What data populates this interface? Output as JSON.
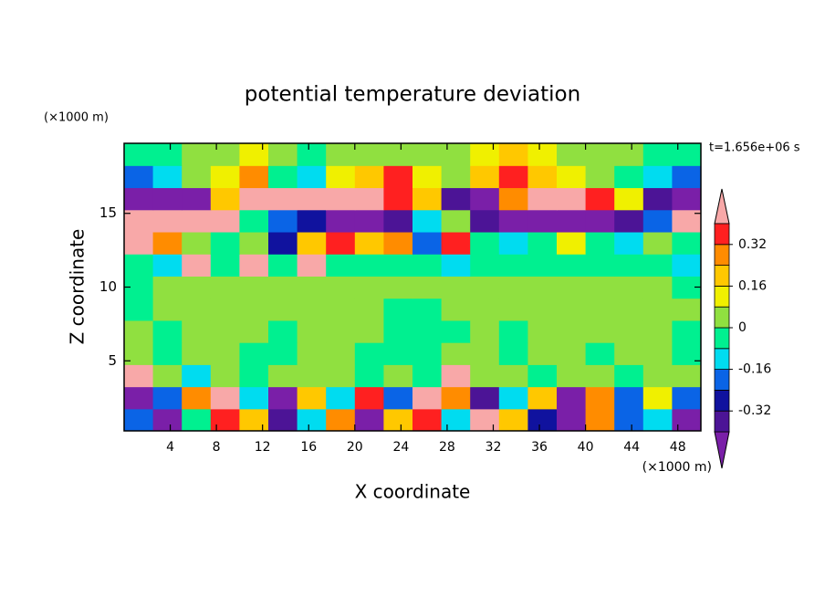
{
  "chart_data": {
    "type": "contour",
    "title": "potential temperature deviation",
    "x_label": "X coordinate",
    "y_label": "Z coordinate",
    "x_unit": "(×1000 m)",
    "y_unit": "(×1000 m)",
    "annotation": "t=1.656e+06 s",
    "xlim": [
      0,
      50
    ],
    "ylim": [
      0.25,
      19.75
    ],
    "xticks": [
      4,
      8,
      12,
      16,
      20,
      24,
      28,
      32,
      36,
      40,
      44,
      48
    ],
    "yticks": [
      5,
      10,
      15
    ],
    "x": [
      1.25,
      3.75,
      6.25,
      8.75,
      11.25,
      13.75,
      16.25,
      18.75,
      21.25,
      23.75,
      26.25,
      28.75,
      31.25,
      33.75,
      36.25,
      38.75,
      41.25,
      43.75,
      46.25,
      48.75
    ],
    "y": [
      1.0,
      2.5,
      4.0,
      5.5,
      7.0,
      8.5,
      10.0,
      11.5,
      13.0,
      14.5,
      16.0,
      17.5,
      19.0
    ],
    "z": [
      [
        -0.2,
        -0.44,
        -0.04,
        0.36,
        0.2,
        -0.36,
        -0.12,
        0.28,
        -0.44,
        0.2,
        0.36,
        -0.12,
        0.44,
        0.2,
        -0.28,
        -0.44,
        0.28,
        -0.2,
        -0.12,
        -0.44
      ],
      [
        -0.44,
        -0.2,
        0.28,
        0.44,
        -0.12,
        -0.44,
        0.2,
        -0.12,
        0.36,
        -0.2,
        0.44,
        0.28,
        -0.36,
        -0.12,
        0.2,
        -0.44,
        0.28,
        -0.2,
        0.12,
        -0.2
      ],
      [
        0.44,
        0.04,
        -0.12,
        0.04,
        -0.04,
        0.04,
        0.04,
        0.04,
        -0.04,
        0.04,
        -0.04,
        0.44,
        0.04,
        0.04,
        -0.04,
        0.04,
        0.04,
        -0.04,
        0.04,
        0.04
      ],
      [
        0.04,
        -0.04,
        0.04,
        0.04,
        -0.04,
        -0.04,
        0.04,
        0.04,
        -0.04,
        -0.04,
        -0.04,
        0.04,
        0.04,
        -0.04,
        0.04,
        0.04,
        -0.04,
        0.04,
        0.04,
        -0.04
      ],
      [
        0.04,
        -0.04,
        0.04,
        0.04,
        0.04,
        -0.04,
        0.04,
        0.04,
        0.04,
        -0.04,
        -0.04,
        -0.04,
        0.04,
        -0.04,
        0.04,
        0.04,
        0.04,
        0.04,
        0.04,
        -0.04
      ],
      [
        -0.04,
        0.04,
        0.04,
        0.04,
        0.04,
        0.04,
        0.04,
        0.04,
        0.04,
        -0.04,
        -0.04,
        0.04,
        0.04,
        0.04,
        0.04,
        0.04,
        0.04,
        0.04,
        0.04,
        0.04
      ],
      [
        -0.04,
        0.04,
        0.04,
        0.04,
        0.04,
        0.04,
        0.04,
        0.04,
        0.04,
        0.04,
        0.04,
        0.04,
        0.04,
        0.04,
        0.04,
        0.04,
        0.04,
        0.04,
        0.04,
        -0.04
      ],
      [
        -0.04,
        -0.12,
        0.44,
        -0.04,
        0.44,
        -0.04,
        0.44,
        -0.04,
        -0.04,
        -0.04,
        -0.04,
        -0.12,
        -0.04,
        -0.04,
        -0.04,
        -0.04,
        -0.04,
        -0.04,
        -0.04,
        -0.12
      ],
      [
        0.44,
        0.28,
        0.04,
        -0.04,
        0.04,
        -0.28,
        0.2,
        0.36,
        0.2,
        0.28,
        -0.2,
        0.36,
        -0.04,
        -0.12,
        -0.04,
        0.12,
        -0.04,
        -0.12,
        0.04,
        -0.04
      ],
      [
        0.44,
        0.44,
        0.44,
        0.44,
        -0.04,
        -0.2,
        -0.28,
        -0.44,
        -0.44,
        -0.36,
        -0.12,
        0.04,
        -0.36,
        -0.44,
        -0.44,
        -0.44,
        -0.44,
        -0.36,
        -0.2,
        0.44
      ],
      [
        -0.44,
        -0.44,
        -0.44,
        0.2,
        0.44,
        0.44,
        0.44,
        0.44,
        0.44,
        0.36,
        0.2,
        -0.36,
        -0.44,
        0.28,
        0.44,
        0.44,
        0.36,
        0.12,
        -0.36,
        -0.44
      ],
      [
        -0.2,
        -0.12,
        0.04,
        0.12,
        0.28,
        -0.04,
        -0.12,
        0.12,
        0.2,
        0.36,
        0.12,
        0.04,
        0.2,
        0.36,
        0.2,
        0.12,
        0.04,
        -0.04,
        -0.12,
        -0.2
      ],
      [
        -0.04,
        -0.04,
        0.04,
        0.04,
        0.12,
        0.04,
        -0.04,
        0.04,
        0.04,
        0.04,
        0.04,
        0.04,
        0.12,
        0.2,
        0.12,
        0.04,
        0.04,
        0.04,
        -0.04,
        -0.04
      ]
    ],
    "colorbar": {
      "levels": [
        -0.4,
        -0.32,
        -0.24,
        -0.16,
        -0.08,
        0,
        0.08,
        0.16,
        0.24,
        0.32,
        0.4
      ],
      "colors": [
        "#7a1fa8",
        "#4c1496",
        "#10129e",
        "#0a64e6",
        "#00dcf0",
        "#00f090",
        "#90e040",
        "#f0f000",
        "#ffc800",
        "#ff8c00",
        "#ff2020",
        "#f8a8a8"
      ],
      "ticks": [
        -0.32,
        -0.16,
        0,
        0.16,
        0.32
      ]
    }
  }
}
